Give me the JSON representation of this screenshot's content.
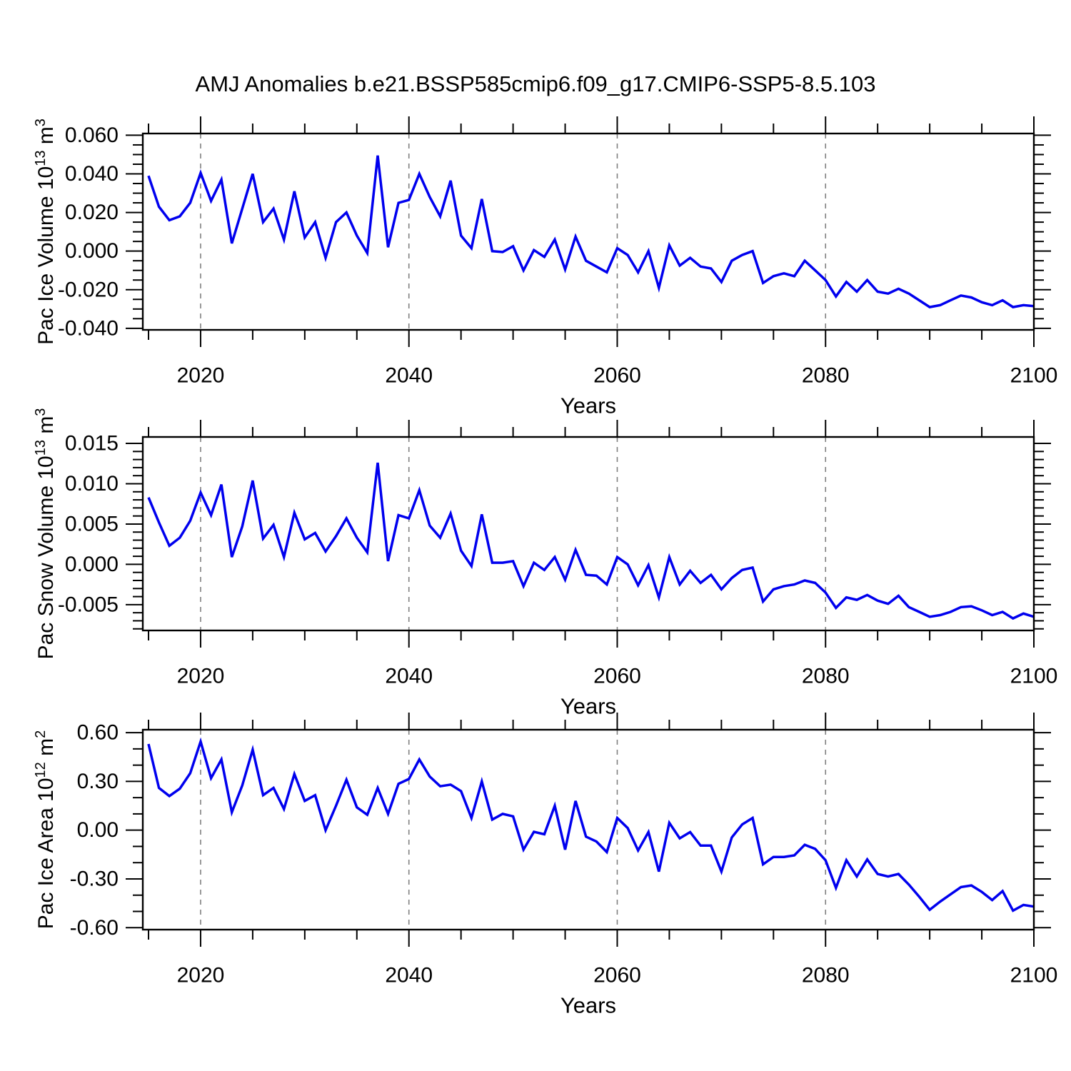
{
  "title": "AMJ Anomalies b.e21.BSSP585cmip6.f09_g17.CMIP6-SSP5-8.5.103",
  "style": {
    "line_color": "#0000ee",
    "grid_color": "#808080",
    "axis_color": "#000000"
  },
  "chart_data": [
    {
      "type": "line",
      "xlabel": "Years",
      "ylabel_parts": [
        {
          "text": "Pac Ice Volume 10"
        },
        {
          "text": "13",
          "sup": true
        },
        {
          "text": " m"
        },
        {
          "text": "3",
          "sup": true
        }
      ],
      "xlim": [
        2014.45,
        2100
      ],
      "ylim": [
        -0.0408,
        0.0609
      ],
      "xticks": {
        "values": [
          2020,
          2040,
          2060,
          2080,
          2100
        ],
        "labels": [
          "2020",
          "2040",
          "2060",
          "2080",
          "2100"
        ],
        "minor_step": 5
      },
      "yticks": {
        "values": [
          0.06,
          0.04,
          0.02,
          0.0,
          -0.02,
          -0.04
        ],
        "labels": [
          "0.060",
          "0.040",
          "0.020",
          "0.000",
          "-0.020",
          "-0.040"
        ],
        "minor_step": 0.005
      },
      "grid": "vertical-dashed-at-major",
      "x": [
        2015,
        2016,
        2017,
        2018,
        2019,
        2020,
        2021,
        2022,
        2023,
        2024,
        2025,
        2026,
        2027,
        2028,
        2029,
        2030,
        2031,
        2032,
        2033,
        2034,
        2035,
        2036,
        2037,
        2038,
        2039,
        2040,
        2041,
        2042,
        2043,
        2044,
        2045,
        2046,
        2047,
        2048,
        2049,
        2050,
        2051,
        2052,
        2053,
        2054,
        2055,
        2056,
        2057,
        2058,
        2059,
        2060,
        2061,
        2062,
        2063,
        2064,
        2065,
        2066,
        2067,
        2068,
        2069,
        2070,
        2071,
        2072,
        2073,
        2074,
        2075,
        2076,
        2077,
        2078,
        2079,
        2080,
        2081,
        2082,
        2083,
        2084,
        2085,
        2086,
        2087,
        2088,
        2089,
        2090,
        2091,
        2092,
        2093,
        2094,
        2095,
        2096,
        2097,
        2098,
        2099,
        2100
      ],
      "values": [
        0.039,
        0.023,
        0.016,
        0.018,
        0.025,
        0.0405,
        0.026,
        0.037,
        0.004,
        0.022,
        0.04,
        0.015,
        0.022,
        0.006,
        0.031,
        0.007,
        0.015,
        -0.0035,
        0.015,
        0.02,
        0.008,
        -0.001,
        0.0495,
        0.002,
        0.025,
        0.0265,
        0.04,
        0.028,
        0.018,
        0.0365,
        0.008,
        0.0015,
        0.027,
        0.0,
        -0.0005,
        0.0025,
        -0.01,
        0.0005,
        -0.003,
        0.006,
        -0.0095,
        0.0075,
        -0.005,
        -0.008,
        -0.011,
        0.0015,
        -0.002,
        -0.011,
        0.0,
        -0.019,
        0.003,
        -0.0075,
        -0.0035,
        -0.008,
        -0.009,
        -0.016,
        -0.005,
        -0.002,
        0.0,
        -0.0165,
        -0.013,
        -0.0115,
        -0.013,
        -0.005,
        -0.01,
        -0.015,
        -0.0235,
        -0.016,
        -0.021,
        -0.015,
        -0.021,
        -0.022,
        -0.0195,
        -0.022,
        -0.0255,
        -0.029,
        -0.028,
        -0.0255,
        -0.023,
        -0.024,
        -0.0265,
        -0.028,
        -0.0255,
        -0.029,
        -0.028,
        -0.0285
      ]
    },
    {
      "type": "line",
      "xlabel": "Years",
      "ylabel_parts": [
        {
          "text": "Pac Snow Volume 10"
        },
        {
          "text": "13",
          "sup": true
        },
        {
          "text": " m"
        },
        {
          "text": "3",
          "sup": true
        }
      ],
      "xlim": [
        2014.45,
        2100
      ],
      "ylim": [
        -0.0082,
        0.0158
      ],
      "xticks": {
        "values": [
          2020,
          2040,
          2060,
          2080,
          2100
        ],
        "labels": [
          "2020",
          "2040",
          "2060",
          "2080",
          "2100"
        ],
        "minor_step": 5
      },
      "yticks": {
        "values": [
          0.015,
          0.01,
          0.005,
          0.0,
          -0.005
        ],
        "labels": [
          "0.015",
          "0.010",
          "0.005",
          "0.000",
          "-0.005"
        ],
        "minor_step": 0.001
      },
      "grid": "vertical-dashed-at-major",
      "x": [
        2015,
        2016,
        2017,
        2018,
        2019,
        2020,
        2021,
        2022,
        2023,
        2024,
        2025,
        2026,
        2027,
        2028,
        2029,
        2030,
        2031,
        2032,
        2033,
        2034,
        2035,
        2036,
        2037,
        2038,
        2039,
        2040,
        2041,
        2042,
        2043,
        2044,
        2045,
        2046,
        2047,
        2048,
        2049,
        2050,
        2051,
        2052,
        2053,
        2054,
        2055,
        2056,
        2057,
        2058,
        2059,
        2060,
        2061,
        2062,
        2063,
        2064,
        2065,
        2066,
        2067,
        2068,
        2069,
        2070,
        2071,
        2072,
        2073,
        2074,
        2075,
        2076,
        2077,
        2078,
        2079,
        2080,
        2081,
        2082,
        2083,
        2084,
        2085,
        2086,
        2087,
        2088,
        2089,
        2090,
        2091,
        2092,
        2093,
        2094,
        2095,
        2096,
        2097,
        2098,
        2099,
        2100
      ],
      "values": [
        0.0083,
        0.0052,
        0.0023,
        0.0033,
        0.0054,
        0.0089,
        0.0061,
        0.0099,
        0.0009,
        0.0047,
        0.0104,
        0.0032,
        0.0049,
        0.0009,
        0.0064,
        0.0031,
        0.0039,
        0.0016,
        0.0035,
        0.0057,
        0.0033,
        0.0015,
        0.0126,
        0.0004,
        0.0061,
        0.0057,
        0.0092,
        0.0048,
        0.0033,
        0.0063,
        0.0017,
        -0.0002,
        0.0062,
        0.0002,
        0.0002,
        0.0004,
        -0.0027,
        0.0002,
        -0.0007,
        0.0009,
        -0.0019,
        0.0018,
        -0.0013,
        -0.0014,
        -0.0025,
        0.0009,
        0.0,
        -0.0026,
        -0.0001,
        -0.0041,
        0.0009,
        -0.0025,
        -0.0008,
        -0.0023,
        -0.0013,
        -0.0031,
        -0.0017,
        -0.0007,
        -0.0004,
        -0.0046,
        -0.0031,
        -0.0027,
        -0.0025,
        -0.002,
        -0.0023,
        -0.0035,
        -0.0054,
        -0.0041,
        -0.0044,
        -0.0038,
        -0.0045,
        -0.0049,
        -0.0039,
        -0.0053,
        -0.0059,
        -0.0065,
        -0.0063,
        -0.0059,
        -0.0053,
        -0.0052,
        -0.0057,
        -0.0063,
        -0.0059,
        -0.0067,
        -0.0061,
        -0.0065
      ]
    },
    {
      "type": "line",
      "xlabel": "Years",
      "ylabel_parts": [
        {
          "text": "Pac Ice Area 10"
        },
        {
          "text": "12",
          "sup": true
        },
        {
          "text": " m"
        },
        {
          "text": "2",
          "sup": true
        }
      ],
      "xlim": [
        2014.45,
        2100
      ],
      "ylim": [
        -0.612,
        0.618
      ],
      "xticks": {
        "values": [
          2020,
          2040,
          2060,
          2080,
          2100
        ],
        "labels": [
          "2020",
          "2040",
          "2060",
          "2080",
          "2100"
        ],
        "minor_step": 5
      },
      "yticks": {
        "values": [
          0.6,
          0.3,
          0.0,
          -0.3,
          -0.6
        ],
        "labels": [
          "0.60",
          "0.30",
          "0.00",
          "-0.30",
          "-0.60"
        ],
        "minor_step": 0.1
      },
      "grid": "vertical-dashed-at-major",
      "x": [
        2015,
        2016,
        2017,
        2018,
        2019,
        2020,
        2021,
        2022,
        2023,
        2024,
        2025,
        2026,
        2027,
        2028,
        2029,
        2030,
        2031,
        2032,
        2033,
        2034,
        2035,
        2036,
        2037,
        2038,
        2039,
        2040,
        2041,
        2042,
        2043,
        2044,
        2045,
        2046,
        2047,
        2048,
        2049,
        2050,
        2051,
        2052,
        2053,
        2054,
        2055,
        2056,
        2057,
        2058,
        2059,
        2060,
        2061,
        2062,
        2063,
        2064,
        2065,
        2066,
        2067,
        2068,
        2069,
        2070,
        2071,
        2072,
        2073,
        2074,
        2075,
        2076,
        2077,
        2078,
        2079,
        2080,
        2081,
        2082,
        2083,
        2084,
        2085,
        2086,
        2087,
        2088,
        2089,
        2090,
        2091,
        2092,
        2093,
        2094,
        2095,
        2096,
        2097,
        2098,
        2099,
        2100
      ],
      "values": [
        0.53,
        0.26,
        0.21,
        0.255,
        0.35,
        0.545,
        0.32,
        0.435,
        0.11,
        0.275,
        0.495,
        0.215,
        0.26,
        0.13,
        0.345,
        0.18,
        0.215,
        0.0,
        0.15,
        0.31,
        0.14,
        0.095,
        0.26,
        0.1,
        0.285,
        0.315,
        0.435,
        0.33,
        0.27,
        0.28,
        0.24,
        0.075,
        0.3,
        0.065,
        0.1,
        0.085,
        -0.12,
        -0.01,
        -0.025,
        0.15,
        -0.12,
        0.18,
        -0.04,
        -0.07,
        -0.135,
        0.075,
        0.013,
        -0.125,
        -0.012,
        -0.255,
        0.045,
        -0.05,
        -0.012,
        -0.095,
        -0.095,
        -0.255,
        -0.045,
        0.035,
        0.075,
        -0.21,
        -0.165,
        -0.165,
        -0.155,
        -0.09,
        -0.115,
        -0.185,
        -0.355,
        -0.185,
        -0.285,
        -0.18,
        -0.27,
        -0.285,
        -0.27,
        -0.335,
        -0.41,
        -0.49,
        -0.44,
        -0.395,
        -0.35,
        -0.34,
        -0.38,
        -0.43,
        -0.375,
        -0.495,
        -0.46,
        -0.47
      ]
    }
  ]
}
